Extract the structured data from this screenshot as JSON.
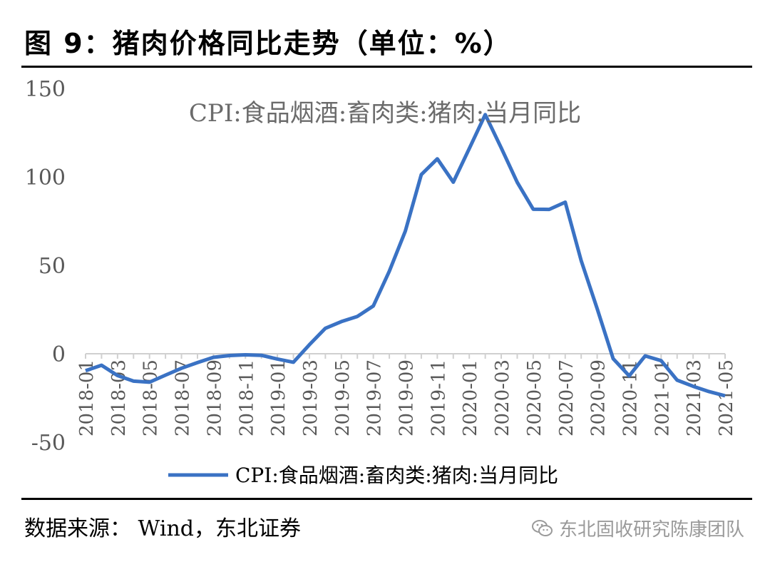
{
  "figure": {
    "title": "图  9：猪肉价格同比走势（单位：%）",
    "source": "数据来源：  Wind，东北证券",
    "watermark": "东北固收研究陈康团队",
    "watermark_icon": "wechat-icon"
  },
  "chart_data": {
    "type": "line",
    "title": "CPI:食品烟酒:畜肉类:猪肉:当月同比",
    "legend": "bottom",
    "grid": false,
    "ylim": [
      -50,
      150
    ],
    "yticks": [
      "150",
      "100",
      "50",
      "0",
      "-50"
    ],
    "xticks": [
      "2018-01",
      "2018-03",
      "2018-05",
      "2018-07",
      "2018-09",
      "2018-11",
      "2019-01",
      "2019-03",
      "2019-05",
      "2019-07",
      "2019-09",
      "2019-11",
      "2020-01",
      "2020-03",
      "2020-05",
      "2020-07",
      "2020-09",
      "2020-11",
      "2021-01",
      "2021-03",
      "2021-05"
    ],
    "color": "#3a72c4",
    "series": [
      {
        "name": "CPI:食品烟酒:畜肉类:猪肉:当月同比",
        "x": [
          "2018-01",
          "2018-02",
          "2018-03",
          "2018-04",
          "2018-05",
          "2018-06",
          "2018-07",
          "2018-08",
          "2018-09",
          "2018-10",
          "2018-11",
          "2018-12",
          "2019-01",
          "2019-02",
          "2019-03",
          "2019-04",
          "2019-05",
          "2019-06",
          "2019-07",
          "2019-08",
          "2019-09",
          "2019-10",
          "2019-11",
          "2019-12",
          "2020-01",
          "2020-02",
          "2020-03",
          "2020-04",
          "2020-05",
          "2020-06",
          "2020-07",
          "2020-08",
          "2020-09",
          "2020-10",
          "2020-11",
          "2020-12",
          "2021-01",
          "2021-02",
          "2021-03",
          "2021-04",
          "2021-05"
        ],
        "values": [
          -9.6,
          -6.5,
          -12.3,
          -15.5,
          -16.1,
          -12.1,
          -8.2,
          -5.0,
          -2.0,
          -1.0,
          -0.6,
          -0.9,
          -3.0,
          -4.8,
          5.1,
          14.4,
          18.2,
          21.1,
          27.0,
          46.7,
          69.3,
          101.3,
          110.2,
          97.0,
          116.0,
          135.2,
          116.4,
          96.9,
          81.7,
          81.6,
          85.7,
          52.6,
          25.5,
          -2.8,
          -12.5,
          -1.2,
          -3.9,
          -14.9,
          -18.4,
          -21.4,
          -23.8
        ]
      }
    ]
  }
}
